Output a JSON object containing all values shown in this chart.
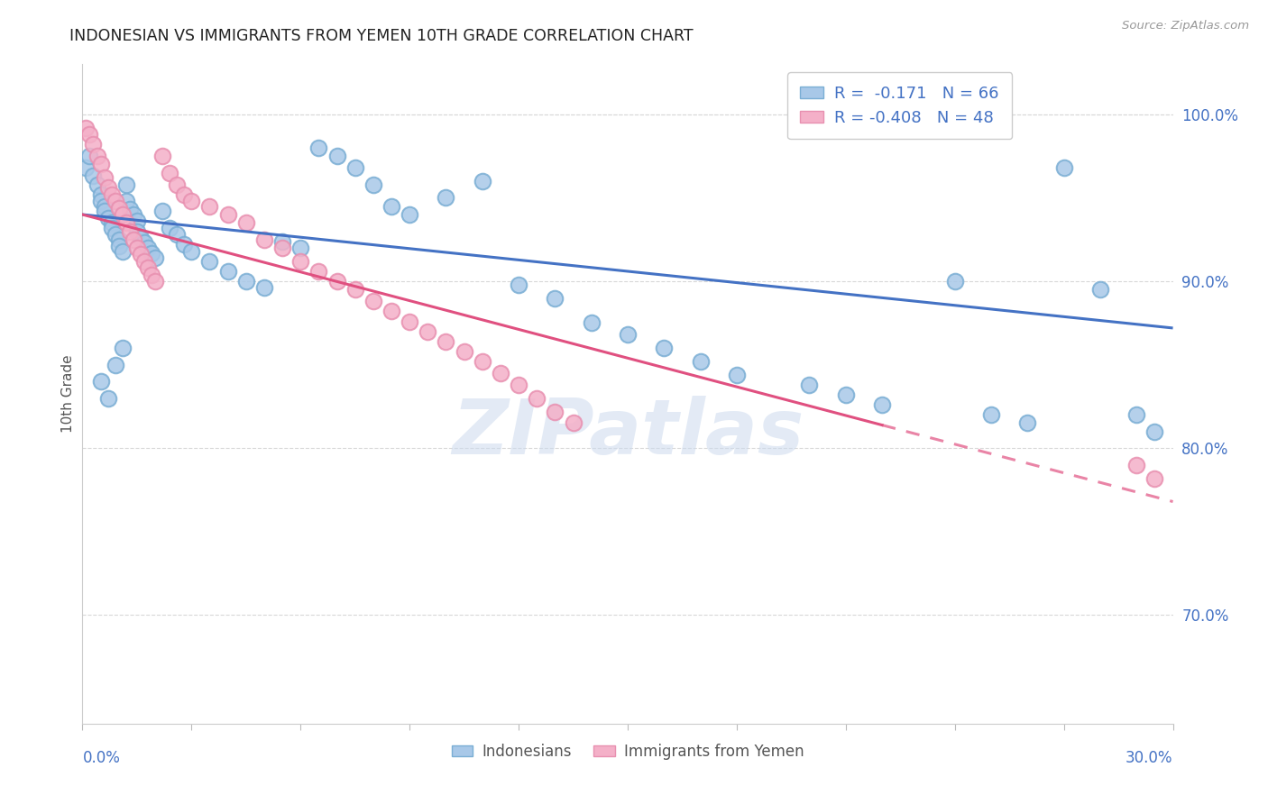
{
  "title": "INDONESIAN VS IMMIGRANTS FROM YEMEN 10TH GRADE CORRELATION CHART",
  "source": "Source: ZipAtlas.com",
  "ylabel": "10th Grade",
  "blue_color": "#a8c8e8",
  "pink_color": "#f4b0c8",
  "blue_edge_color": "#7aaed4",
  "pink_edge_color": "#e890b0",
  "blue_line_color": "#4472c4",
  "pink_line_color": "#e05080",
  "right_axis_color": "#4472c4",
  "blue_r": "-0.171",
  "blue_n": "66",
  "pink_r": "-0.408",
  "pink_n": "48",
  "watermark": "ZIPatlas",
  "xmin": 0.0,
  "xmax": 0.3,
  "ymin": 0.635,
  "ymax": 1.03,
  "yright_ticks": [
    0.7,
    0.8,
    0.9,
    1.0
  ],
  "yright_labels": [
    "70.0%",
    "80.0%",
    "90.0%",
    "100.0%"
  ],
  "blue_trend_x": [
    0.0,
    0.3
  ],
  "blue_trend_y": [
    0.94,
    0.872
  ],
  "pink_trend_x": [
    0.0,
    0.3
  ],
  "pink_trend_y": [
    0.94,
    0.768
  ],
  "blue_scatter_x": [
    0.001,
    0.002,
    0.003,
    0.004,
    0.005,
    0.005,
    0.006,
    0.006,
    0.007,
    0.008,
    0.008,
    0.009,
    0.01,
    0.01,
    0.011,
    0.012,
    0.012,
    0.013,
    0.014,
    0.015,
    0.015,
    0.016,
    0.017,
    0.018,
    0.019,
    0.02,
    0.022,
    0.024,
    0.026,
    0.028,
    0.03,
    0.035,
    0.04,
    0.045,
    0.05,
    0.055,
    0.06,
    0.065,
    0.07,
    0.075,
    0.08,
    0.085,
    0.09,
    0.1,
    0.11,
    0.12,
    0.13,
    0.14,
    0.15,
    0.16,
    0.17,
    0.18,
    0.2,
    0.21,
    0.22,
    0.24,
    0.25,
    0.26,
    0.27,
    0.28,
    0.29,
    0.295,
    0.005,
    0.007,
    0.009,
    0.011
  ],
  "blue_scatter_y": [
    0.968,
    0.975,
    0.963,
    0.958,
    0.952,
    0.948,
    0.945,
    0.942,
    0.938,
    0.935,
    0.932,
    0.928,
    0.925,
    0.921,
    0.918,
    0.958,
    0.948,
    0.943,
    0.94,
    0.936,
    0.93,
    0.926,
    0.923,
    0.92,
    0.917,
    0.914,
    0.942,
    0.932,
    0.928,
    0.922,
    0.918,
    0.912,
    0.906,
    0.9,
    0.896,
    0.924,
    0.92,
    0.98,
    0.975,
    0.968,
    0.958,
    0.945,
    0.94,
    0.95,
    0.96,
    0.898,
    0.89,
    0.875,
    0.868,
    0.86,
    0.852,
    0.844,
    0.838,
    0.832,
    0.826,
    0.9,
    0.82,
    0.815,
    0.968,
    0.895,
    0.82,
    0.81,
    0.84,
    0.83,
    0.85,
    0.86
  ],
  "pink_scatter_x": [
    0.001,
    0.002,
    0.003,
    0.004,
    0.005,
    0.006,
    0.007,
    0.008,
    0.009,
    0.01,
    0.011,
    0.012,
    0.013,
    0.014,
    0.015,
    0.016,
    0.017,
    0.018,
    0.019,
    0.02,
    0.022,
    0.024,
    0.026,
    0.028,
    0.03,
    0.035,
    0.04,
    0.045,
    0.05,
    0.055,
    0.06,
    0.065,
    0.07,
    0.075,
    0.08,
    0.085,
    0.09,
    0.095,
    0.1,
    0.105,
    0.11,
    0.115,
    0.12,
    0.125,
    0.13,
    0.135,
    0.29,
    0.295
  ],
  "pink_scatter_y": [
    0.992,
    0.988,
    0.982,
    0.975,
    0.97,
    0.962,
    0.956,
    0.952,
    0.948,
    0.944,
    0.94,
    0.935,
    0.93,
    0.925,
    0.92,
    0.916,
    0.912,
    0.908,
    0.904,
    0.9,
    0.975,
    0.965,
    0.958,
    0.952,
    0.948,
    0.945,
    0.94,
    0.935,
    0.925,
    0.92,
    0.912,
    0.906,
    0.9,
    0.895,
    0.888,
    0.882,
    0.876,
    0.87,
    0.864,
    0.858,
    0.852,
    0.845,
    0.838,
    0.83,
    0.822,
    0.815,
    0.79,
    0.782
  ]
}
